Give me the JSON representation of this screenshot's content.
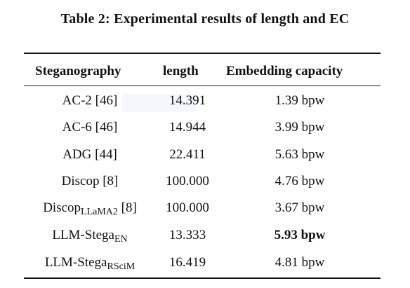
{
  "caption": "Table 2: Experimental results of length and EC",
  "headers": {
    "steganography": "Steganography",
    "length": "length",
    "capacity": "Embedding capacity"
  },
  "rows": [
    {
      "method": "AC-2 [46]",
      "sub": "",
      "suffix": "",
      "length": "14.391",
      "capacity": "1.39 bpw",
      "bold": false
    },
    {
      "method": "AC-6 [46]",
      "sub": "",
      "suffix": "",
      "length": "14.944",
      "capacity": "3.99 bpw",
      "bold": false
    },
    {
      "method": "ADG [44]",
      "sub": "",
      "suffix": "",
      "length": "22.411",
      "capacity": "5.63 bpw",
      "bold": false
    },
    {
      "method": "Discop [8]",
      "sub": "",
      "suffix": "",
      "length": "100.000",
      "capacity": "4.76 bpw",
      "bold": false
    },
    {
      "method": "Discop",
      "sub": "LLaMA2",
      "suffix": " [8]",
      "length": "100.000",
      "capacity": "3.67 bpw",
      "bold": false
    },
    {
      "method": "LLM-Stega",
      "sub": "EN",
      "suffix": "",
      "length": "13.333",
      "capacity": "5.93 bpw",
      "bold": true
    },
    {
      "method": "LLM-Stega",
      "sub": "RSciM",
      "suffix": "",
      "length": "16.419",
      "capacity": "4.81 bpw",
      "bold": false
    }
  ]
}
